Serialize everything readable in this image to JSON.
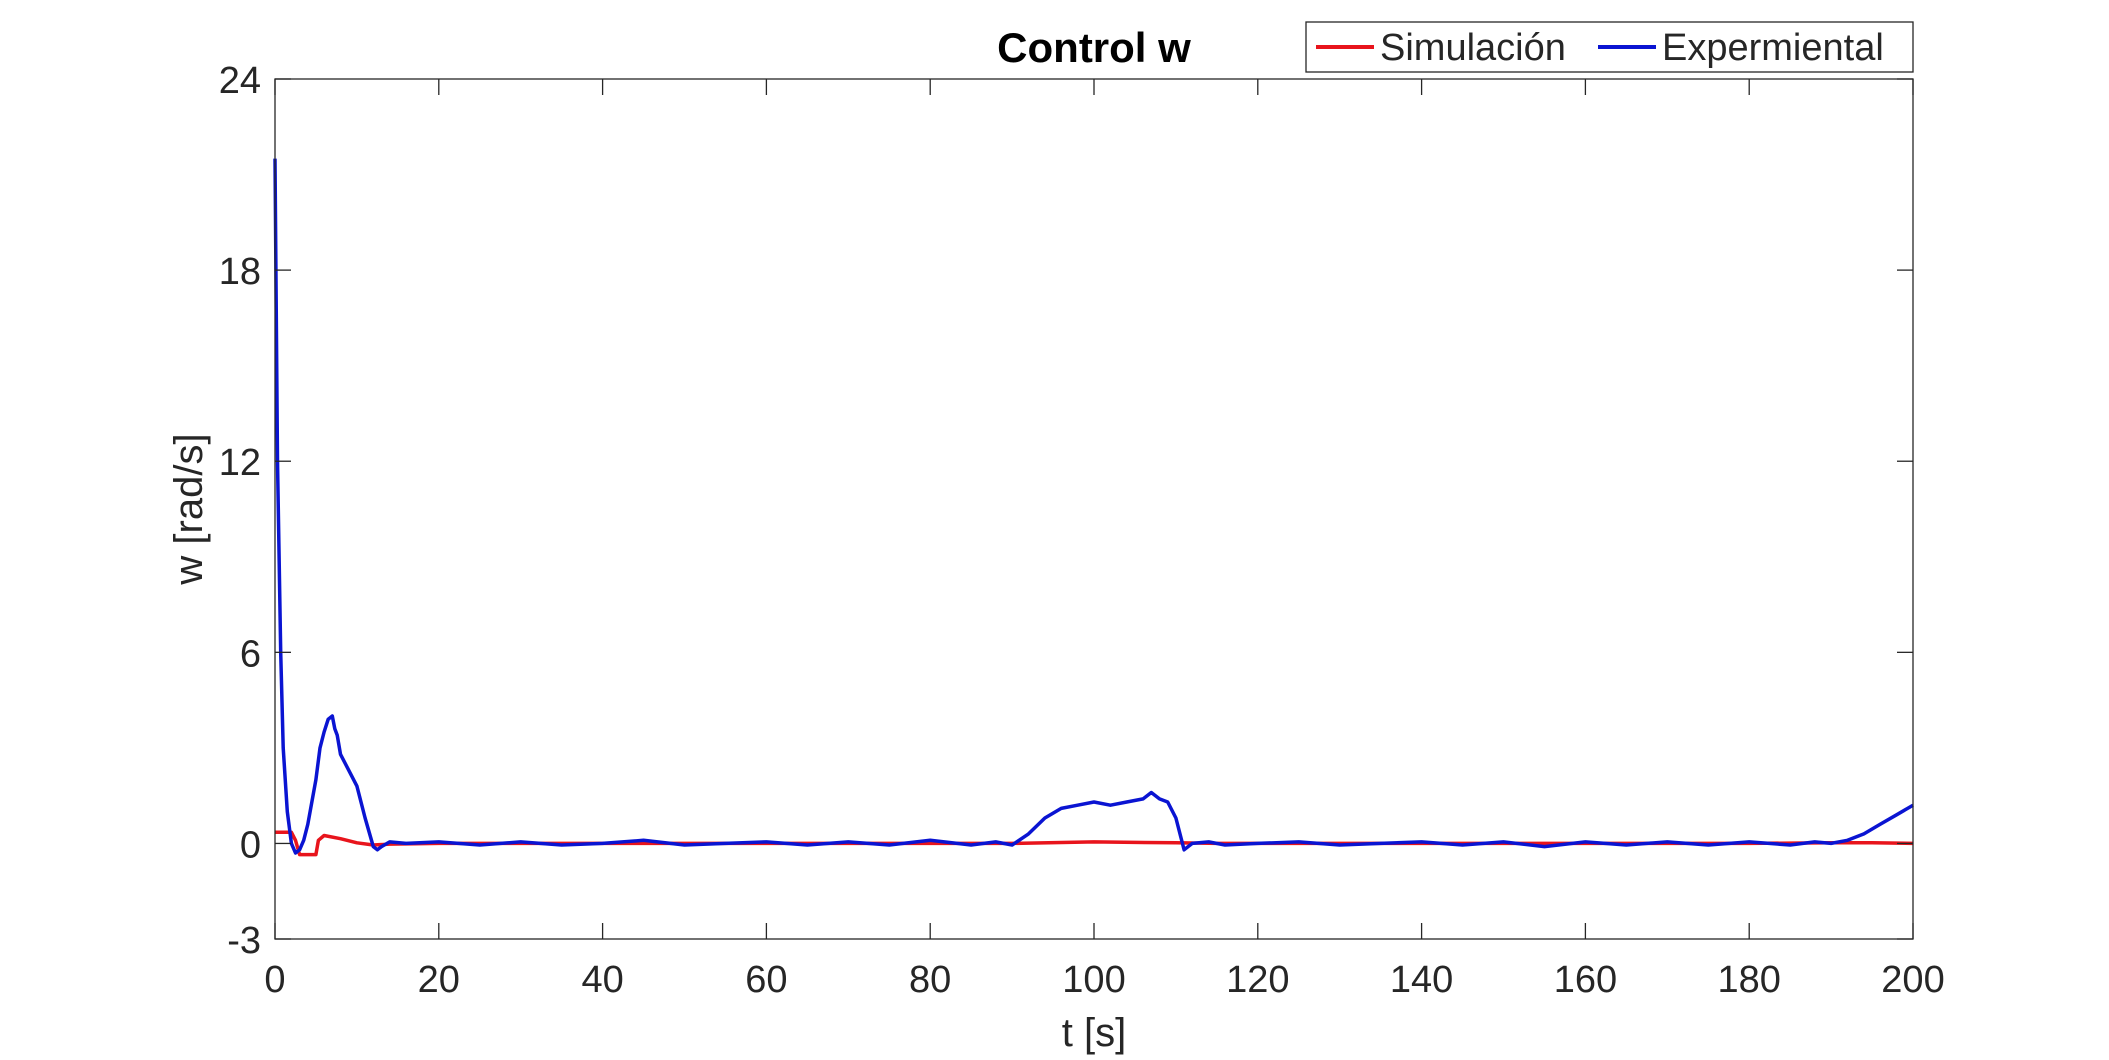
{
  "chart_data": {
    "type": "line",
    "title": "Control w",
    "xlabel": "t [s]",
    "ylabel": "w [rad/s]",
    "xlim": [
      0,
      200
    ],
    "ylim": [
      -3,
      24
    ],
    "xticks": [
      0,
      20,
      40,
      60,
      80,
      100,
      120,
      140,
      160,
      180,
      200
    ],
    "yticks": [
      -3,
      0,
      6,
      12,
      18,
      24
    ],
    "grid": false,
    "legend_position": "top-right",
    "series": [
      {
        "name": "Simulación",
        "color": "#e8141c",
        "x": [
          0,
          2,
          2.5,
          3,
          5,
          5.3,
          6,
          8,
          10,
          12,
          14,
          20,
          40,
          60,
          80,
          90,
          100,
          110,
          115,
          120,
          140,
          160,
          180,
          190,
          195,
          200
        ],
        "y": [
          0.35,
          0.35,
          0.1,
          -0.35,
          -0.35,
          0.1,
          0.25,
          0.15,
          0.02,
          -0.05,
          -0.02,
          0,
          0,
          0,
          0,
          0,
          0.05,
          0.02,
          0,
          0,
          0,
          0,
          0,
          0.02,
          0.02,
          0
        ]
      },
      {
        "name": "Expermiental",
        "color": "#0a14d2",
        "x": [
          0,
          0.3,
          0.7,
          1,
          1.5,
          2,
          2.5,
          3,
          3.5,
          4,
          5,
          5.5,
          6,
          6.5,
          7,
          7.3,
          7.6,
          8,
          9,
          10,
          11,
          12,
          12.5,
          13,
          14,
          16,
          20,
          25,
          30,
          35,
          40,
          45,
          50,
          55,
          60,
          65,
          70,
          75,
          80,
          85,
          88,
          90,
          92,
          94,
          96,
          98,
          100,
          102,
          104,
          106,
          107,
          108,
          109,
          110,
          111,
          112,
          114,
          116,
          120,
          125,
          130,
          135,
          140,
          145,
          150,
          155,
          160,
          165,
          170,
          175,
          180,
          185,
          188,
          190,
          192,
          194,
          196,
          198,
          200
        ],
        "y": [
          21.5,
          12,
          6,
          3,
          1,
          0,
          -0.3,
          -0.2,
          0.1,
          0.6,
          2,
          3,
          3.5,
          3.9,
          4.0,
          3.6,
          3.4,
          2.8,
          2.3,
          1.8,
          0.8,
          -0.1,
          -0.2,
          -0.1,
          0.05,
          0,
          0.05,
          -0.05,
          0.05,
          -0.05,
          0,
          0.1,
          -0.05,
          0,
          0.05,
          -0.05,
          0.05,
          -0.05,
          0.1,
          -0.05,
          0.05,
          -0.05,
          0.3,
          0.8,
          1.1,
          1.2,
          1.3,
          1.2,
          1.3,
          1.4,
          1.6,
          1.4,
          1.3,
          0.8,
          -0.2,
          0,
          0.05,
          -0.05,
          0,
          0.05,
          -0.05,
          0,
          0.05,
          -0.05,
          0.05,
          -0.1,
          0.05,
          -0.05,
          0.05,
          -0.05,
          0.05,
          -0.05,
          0.05,
          0,
          0.1,
          0.3,
          0.6,
          0.9,
          1.2
        ]
      }
    ]
  }
}
